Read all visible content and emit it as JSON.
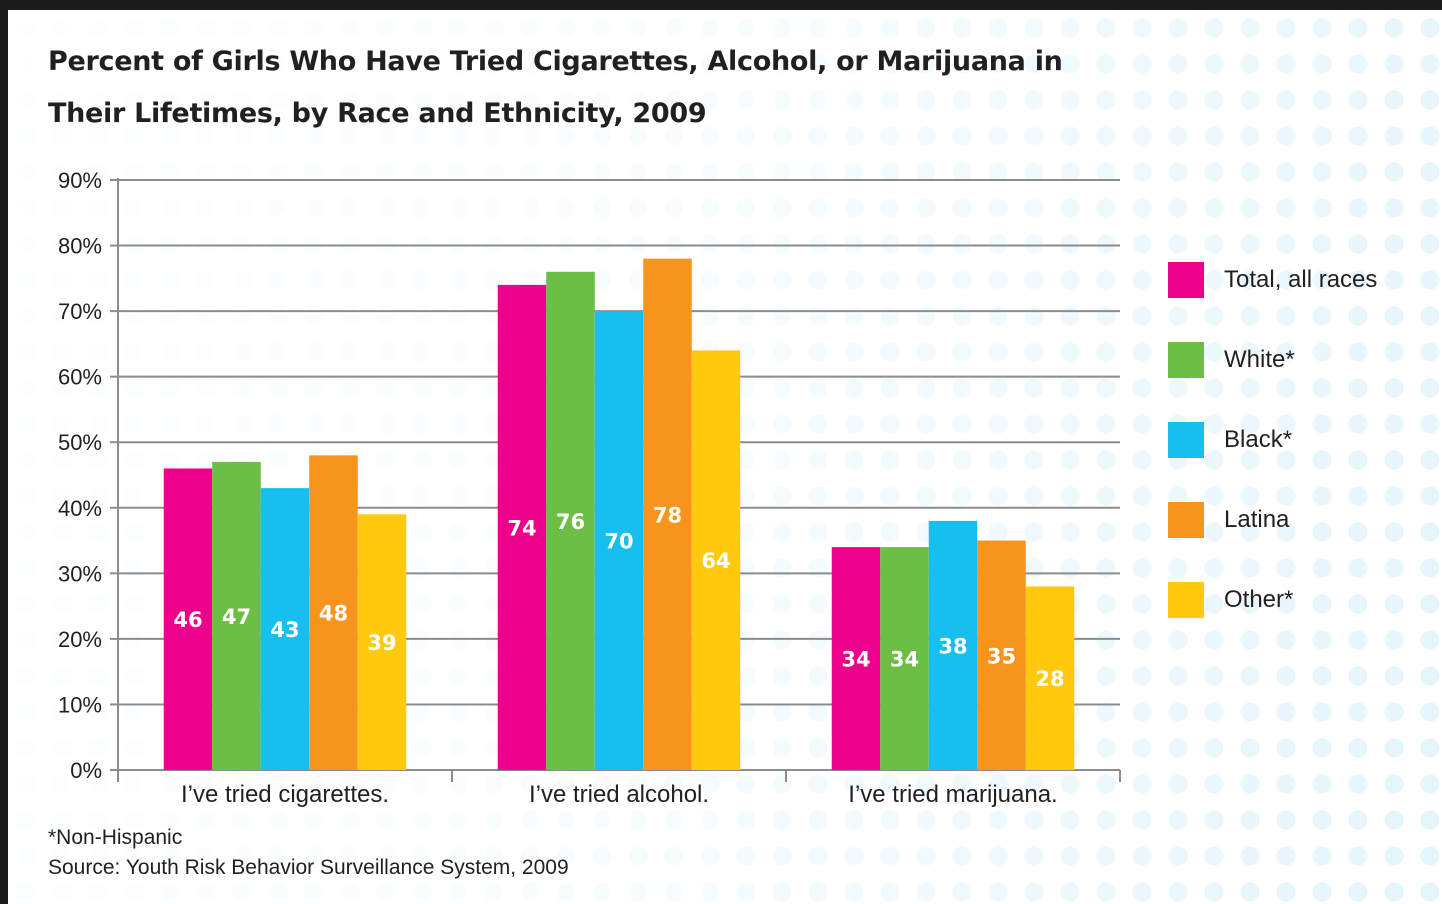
{
  "chart_data": {
    "type": "bar",
    "title": "Percent of Girls Who Have Tried Cigarettes, Alcohol, or Marijuana in Their Lifetimes, by Race and Ethnicity, 2009",
    "title_lines": [
      "Percent of Girls Who Have Tried Cigarettes, Alcohol, or Marijuana in",
      "Their Lifetimes, by Race and Ethnicity, 2009"
    ],
    "categories": [
      "I’ve tried cigarettes.",
      "I’ve tried alcohol.",
      "I’ve tried marijuana."
    ],
    "series": [
      {
        "name": "Total, all races",
        "color": "#ec008c",
        "values": [
          46,
          74,
          34
        ]
      },
      {
        "name": "White*",
        "color": "#6cbe45",
        "values": [
          47,
          76,
          34
        ]
      },
      {
        "name": "Black*",
        "color": "#17bfef",
        "values": [
          43,
          70,
          38
        ]
      },
      {
        "name": "Latina",
        "color": "#f7941d",
        "values": [
          48,
          78,
          35
        ]
      },
      {
        "name": "Other*",
        "color": "#ffc90e",
        "values": [
          39,
          64,
          28
        ]
      }
    ],
    "ylim": [
      0,
      90
    ],
    "yticks": [
      "0%",
      "10%",
      "20%",
      "30%",
      "40%",
      "50%",
      "60%",
      "70%",
      "80%",
      "90%"
    ],
    "xlabel": "",
    "ylabel": "",
    "grid": true,
    "legend_position": "right"
  },
  "footnote": "*Non-Hispanic",
  "source": "Source: Youth Risk Behavior Surveillance System, 2009",
  "colors": {
    "axis": "#8a8c8e",
    "text": "#231f20",
    "dots": "#dff3fb"
  }
}
